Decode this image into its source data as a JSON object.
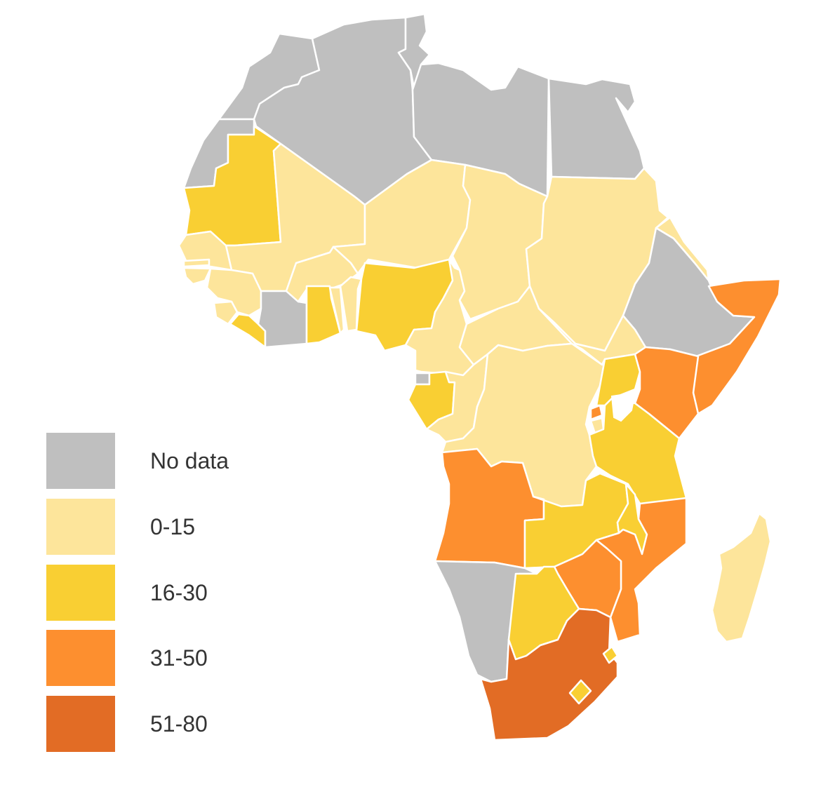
{
  "legend": {
    "items": [
      {
        "label": "No data",
        "color": "#bfbfbf",
        "key": "nodata"
      },
      {
        "label": "0-15",
        "color": "#fde59b",
        "key": "c1"
      },
      {
        "label": "16-30",
        "color": "#f9cf33",
        "key": "c2"
      },
      {
        "label": "31-50",
        "color": "#fd8f2f",
        "key": "c3"
      },
      {
        "label": "51-80",
        "color": "#e26c25",
        "key": "c4"
      }
    ]
  },
  "regions": [
    {
      "name": "morocco",
      "category": "nodata"
    },
    {
      "name": "western-sahara",
      "category": "nodata"
    },
    {
      "name": "algeria",
      "category": "nodata"
    },
    {
      "name": "tunisia",
      "category": "nodata"
    },
    {
      "name": "libya",
      "category": "nodata"
    },
    {
      "name": "egypt",
      "category": "nodata"
    },
    {
      "name": "mauritania",
      "category": "c2"
    },
    {
      "name": "mali",
      "category": "c1"
    },
    {
      "name": "niger",
      "category": "c1"
    },
    {
      "name": "chad",
      "category": "c1"
    },
    {
      "name": "sudan",
      "category": "c1"
    },
    {
      "name": "eritrea",
      "category": "c1"
    },
    {
      "name": "ethiopia",
      "category": "nodata"
    },
    {
      "name": "somalia",
      "category": "c3"
    },
    {
      "name": "senegal",
      "category": "c1"
    },
    {
      "name": "gambia",
      "category": "c1"
    },
    {
      "name": "guinea-bissau",
      "category": "c1"
    },
    {
      "name": "guinea",
      "category": "c1"
    },
    {
      "name": "sierra-leone",
      "category": "c1"
    },
    {
      "name": "liberia",
      "category": "c2"
    },
    {
      "name": "cote-divoire",
      "category": "nodata"
    },
    {
      "name": "burkina-faso",
      "category": "c1"
    },
    {
      "name": "ghana",
      "category": "c2"
    },
    {
      "name": "togo",
      "category": "c1"
    },
    {
      "name": "benin",
      "category": "c1"
    },
    {
      "name": "nigeria",
      "category": "c2"
    },
    {
      "name": "cameroon",
      "category": "c1"
    },
    {
      "name": "central-african-republic",
      "category": "c1"
    },
    {
      "name": "south-sudan",
      "category": "c1"
    },
    {
      "name": "equatorial-guinea",
      "category": "nodata"
    },
    {
      "name": "gabon",
      "category": "c2"
    },
    {
      "name": "republic-of-congo",
      "category": "c1"
    },
    {
      "name": "dr-congo",
      "category": "c1"
    },
    {
      "name": "uganda",
      "category": "c2"
    },
    {
      "name": "kenya",
      "category": "c3"
    },
    {
      "name": "rwanda",
      "category": "c3"
    },
    {
      "name": "burundi",
      "category": "c1"
    },
    {
      "name": "tanzania",
      "category": "c2"
    },
    {
      "name": "angola",
      "category": "c3"
    },
    {
      "name": "zambia",
      "category": "c2"
    },
    {
      "name": "malawi",
      "category": "c2"
    },
    {
      "name": "mozambique",
      "category": "c3"
    },
    {
      "name": "zimbabwe",
      "category": "c3"
    },
    {
      "name": "namibia",
      "category": "nodata"
    },
    {
      "name": "botswana",
      "category": "c2"
    },
    {
      "name": "south-africa",
      "category": "c4"
    },
    {
      "name": "lesotho",
      "category": "c2"
    },
    {
      "name": "swaziland",
      "category": "c2"
    },
    {
      "name": "madagascar",
      "category": "c1"
    }
  ]
}
